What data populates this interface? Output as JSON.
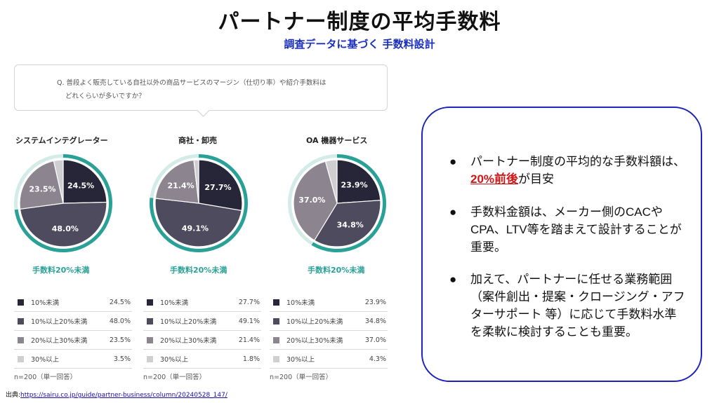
{
  "slide": {
    "title": "パートナー制度の平均手数料",
    "subtitle": "調査データに基づく 手数料設計"
  },
  "survey": {
    "question_line1": "Q. 普段よく販売している自社以外の商品サービスのマージン（仕切り率）や紹介手数料は",
    "question_line2": "どれくらいが多いですか？",
    "highlight_note": "手数料20%未満",
    "sample_note": "n=200（単一回答）"
  },
  "chart_data": {
    "type": "pie",
    "categories": [
      "10%未満",
      "10%以上20%未満",
      "20%以上30%未満",
      "30%以上"
    ],
    "colors": [
      "#262638",
      "#4f4b5e",
      "#8c8590",
      "#cfcfd1"
    ],
    "accent_color": "#2aa197",
    "series": [
      {
        "name": "システムインテグレーター",
        "values": [
          24.5,
          48.0,
          23.5,
          3.5
        ],
        "labels": [
          "24.5%",
          "48.0%",
          "23.5%",
          "3.5%"
        ]
      },
      {
        "name": "商社・卸売",
        "values": [
          27.7,
          49.1,
          21.4,
          1.8
        ],
        "labels": [
          "27.7%",
          "49.1%",
          "21.4%",
          "1.8%"
        ]
      },
      {
        "name": "OA 機器サービス",
        "values": [
          23.9,
          34.8,
          37.0,
          4.3
        ],
        "labels": [
          "23.9%",
          "34.8%",
          "37.0%",
          "4.3%"
        ]
      }
    ]
  },
  "panel": {
    "bullet_symbol": "●",
    "b1_text_a": "パートナー制度の平均的な手数料額は、",
    "b1_highlight": "20%前後",
    "b1_text_b": "が目安",
    "b2_text": "手数料金額は、メーカー側のCACやCPA、LTV等を踏まえて設計することが重要。",
    "b3_text": "加えて、パートナーに任せる業務範囲（案件創出・提案・クロージング・アフターサポート 等）に応じて手数料水準を柔軟に検討することも重要。"
  },
  "source": {
    "label": "出典:",
    "url": "https://sairu.co.jp/guide/partner-business/column/20240528_147/"
  }
}
